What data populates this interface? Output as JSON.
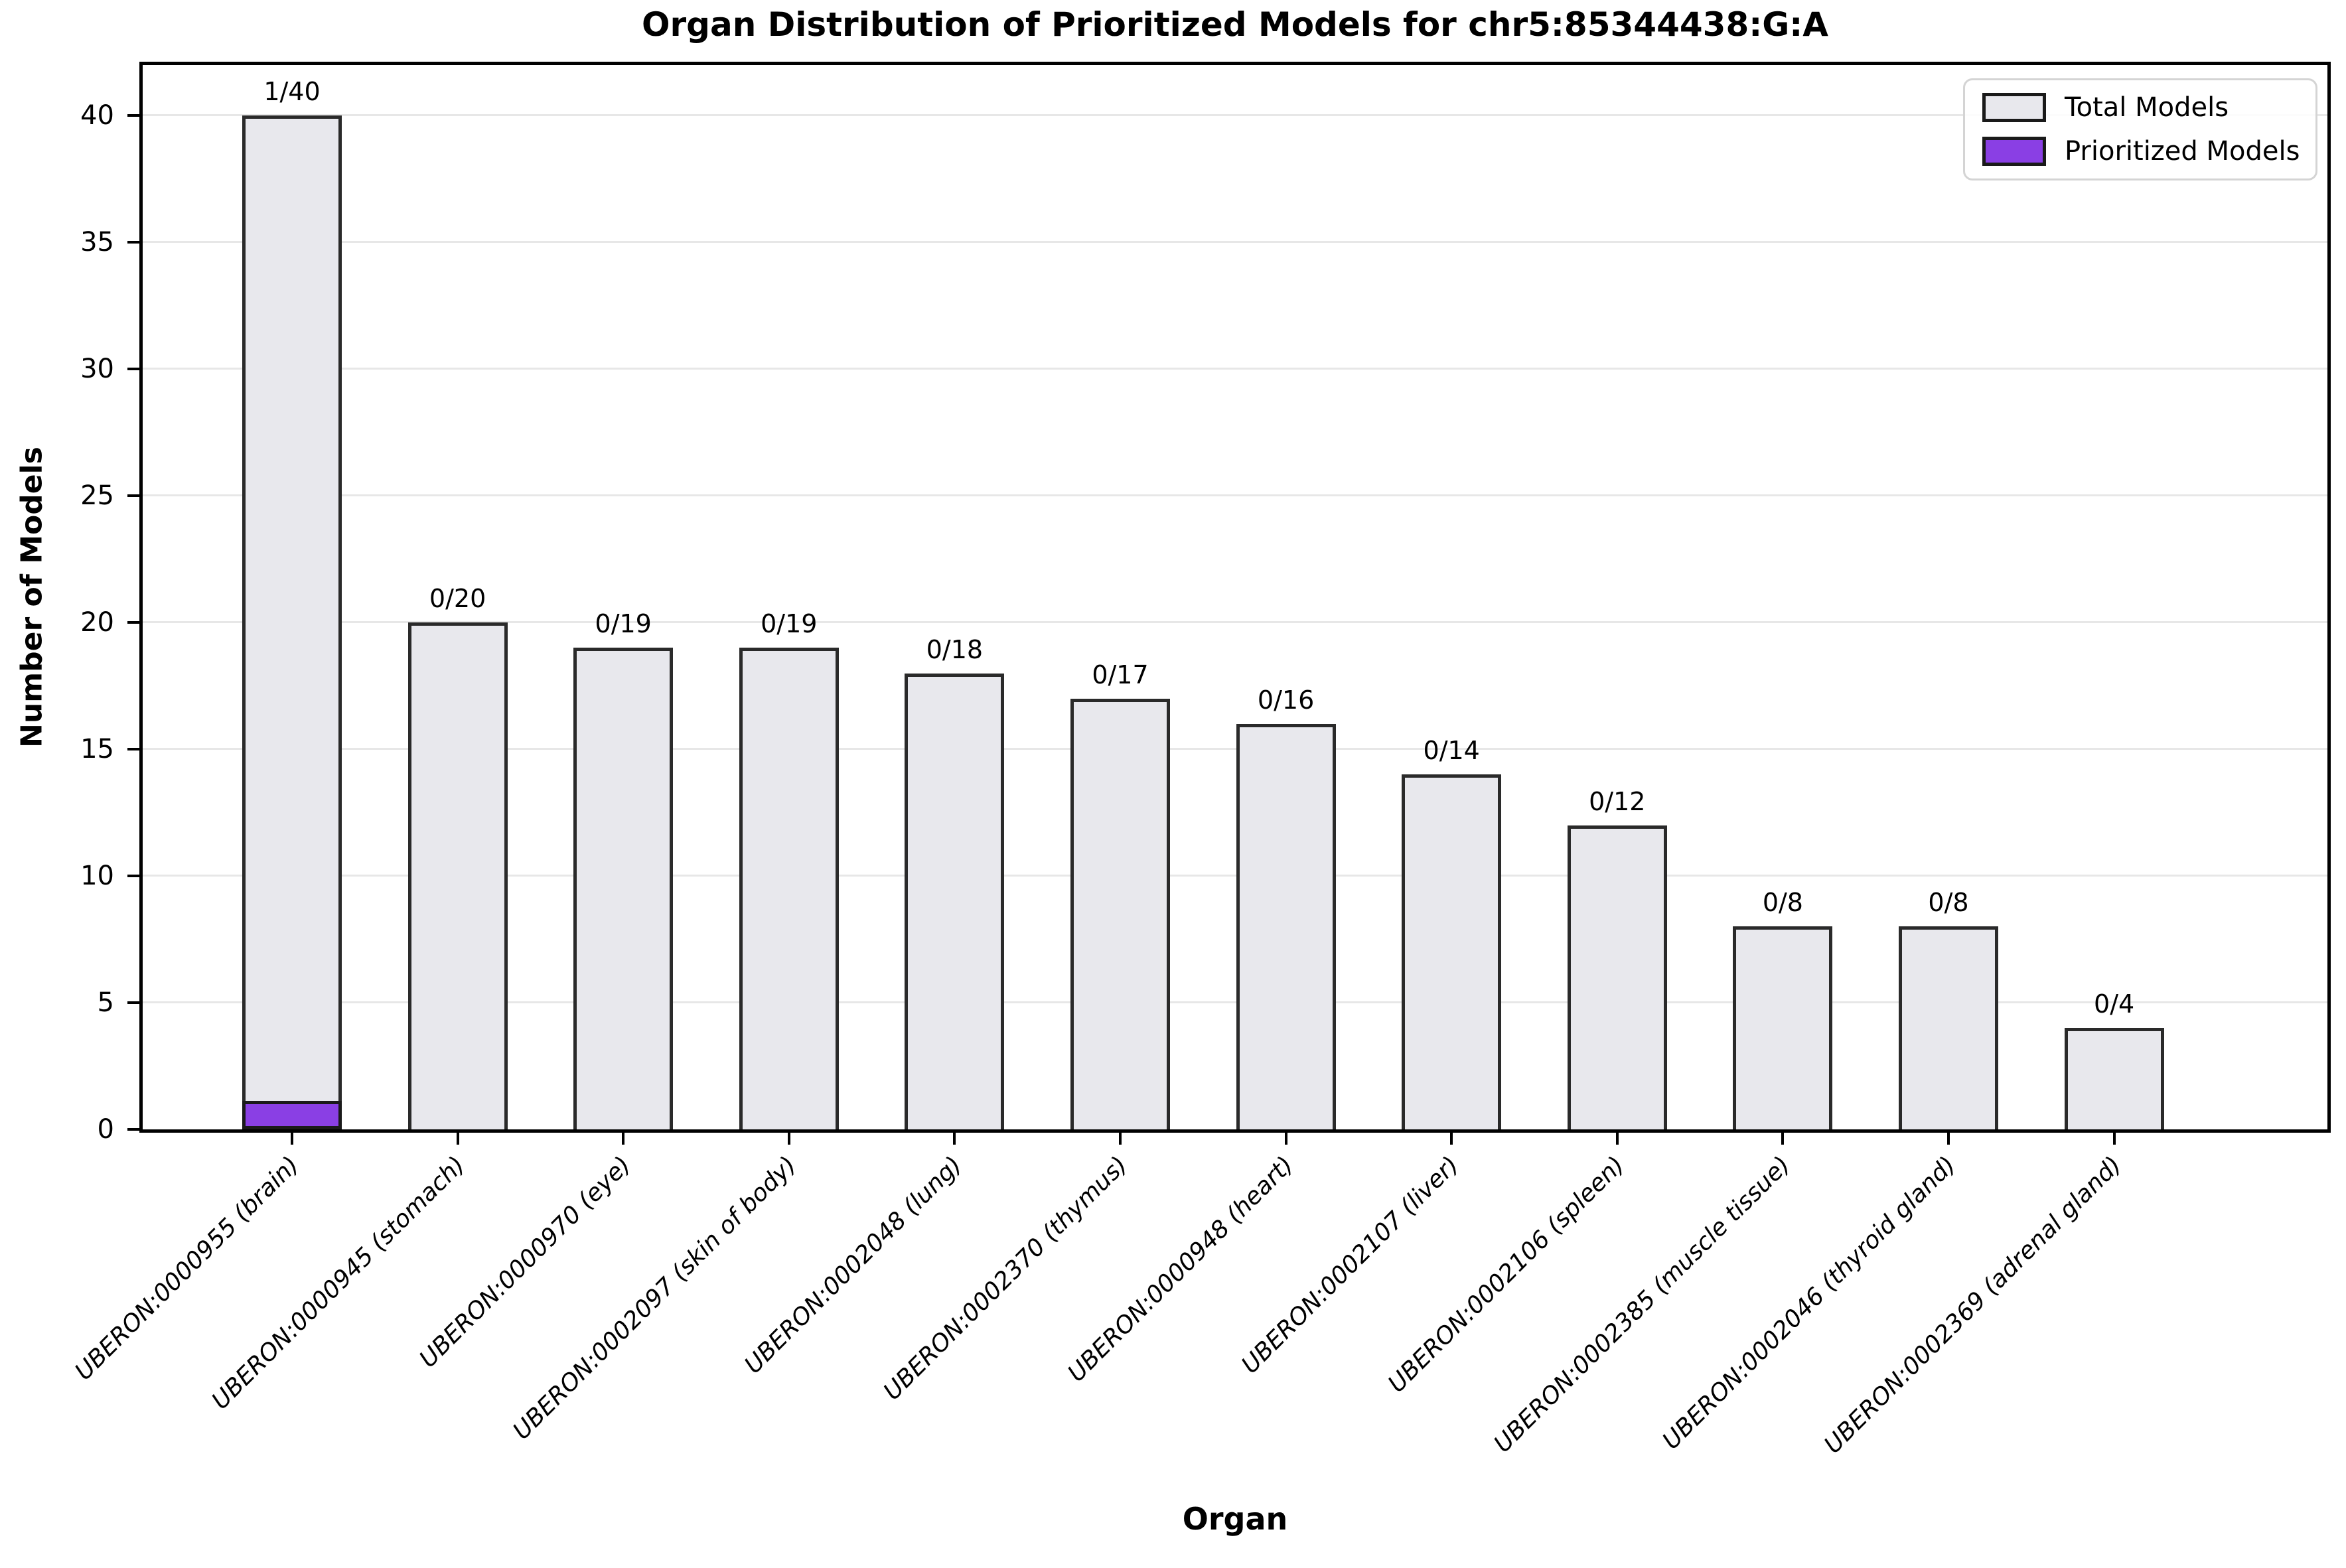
{
  "figure": {
    "title": "Organ Distribution of Prioritized Models for chr5:85344438:G:A",
    "xlabel": "Organ",
    "ylabel": "Number of Models",
    "background_color": "#ffffff"
  },
  "legend": {
    "items": [
      {
        "label": "Total Models",
        "color": "#e8e8ed",
        "edge_color": "#1a1a1a"
      },
      {
        "label": "Prioritized Models",
        "color": "#8a3fe4",
        "edge_color": "#1a1a1a"
      }
    ]
  },
  "chart_data": {
    "type": "bar",
    "title": "Organ Distribution of Prioritized Models for chr5:85344438:G:A",
    "xlabel": "Organ",
    "ylabel": "Number of Models",
    "categories": [
      "UBERON:0000955 (brain)",
      "UBERON:0000945 (stomach)",
      "UBERON:0000970 (eye)",
      "UBERON:0002097 (skin of body)",
      "UBERON:0002048 (lung)",
      "UBERON:0002370 (thymus)",
      "UBERON:0000948 (heart)",
      "UBERON:0002107 (liver)",
      "UBERON:0002106 (spleen)",
      "UBERON:0002385 (muscle tissue)",
      "UBERON:0002046 (thyroid gland)",
      "UBERON:0002369 (adrenal gland)"
    ],
    "series": [
      {
        "name": "Total Models",
        "color": "#e8e8ed",
        "values": [
          40,
          20,
          19,
          19,
          18,
          17,
          16,
          14,
          12,
          8,
          8,
          4
        ]
      },
      {
        "name": "Prioritized Models",
        "color": "#8a3fe4",
        "values": [
          1,
          0,
          0,
          0,
          0,
          0,
          0,
          0,
          0,
          0,
          0,
          0
        ]
      }
    ],
    "bar_labels": [
      "1/40",
      "0/20",
      "0/19",
      "0/19",
      "0/18",
      "0/17",
      "0/16",
      "0/14",
      "0/12",
      "0/8",
      "0/8",
      "0/4"
    ],
    "ylim": [
      0,
      42
    ],
    "yticks": [
      0,
      5,
      10,
      15,
      20,
      25,
      30,
      35,
      40
    ],
    "grid": true,
    "grid_color": "#e7e7e7",
    "bar_edge_color": "#2a2a2a",
    "legend_position": "upper right"
  }
}
